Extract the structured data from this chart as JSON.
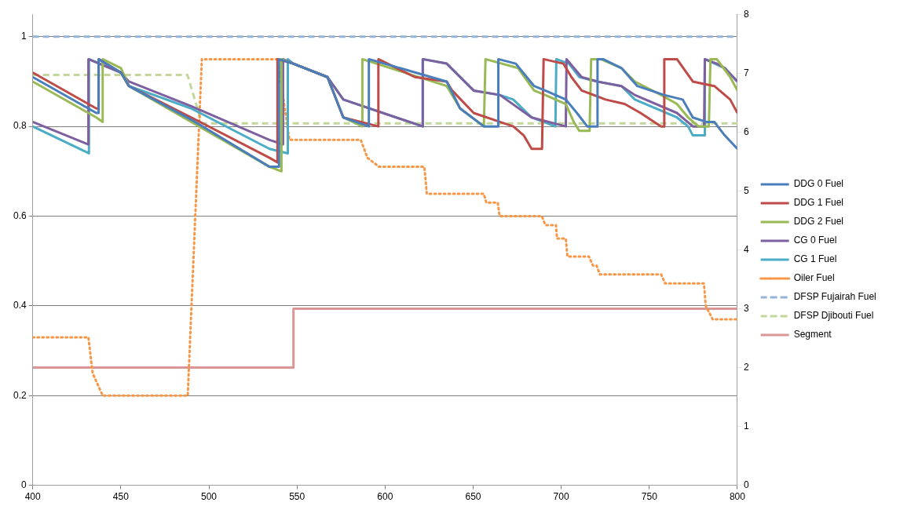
{
  "chart_data": {
    "type": "line",
    "xlim": [
      400,
      800
    ],
    "xticks": [
      400,
      450,
      500,
      550,
      600,
      650,
      700,
      750,
      800
    ],
    "ylim": [
      0,
      1.05
    ],
    "yticks": [
      0,
      0.2,
      0.4,
      0.6,
      0.8,
      1
    ],
    "y2lim": [
      0,
      8
    ],
    "y2ticks": [
      0,
      1,
      2,
      3,
      4,
      5,
      6,
      7,
      8
    ],
    "grid": "y",
    "legend": "right",
    "marker": "none",
    "series": [
      {
        "name": "DDG 0 Fuel",
        "color": "#4a7ebb",
        "line_style": "solid",
        "x": [
          400,
          436.1,
          437.4,
          437.4,
          450.1,
          454.6,
          490,
          534.4,
          539.8,
          539.8,
          547.9,
          567.3,
          576.3,
          590.8,
          590.8,
          635,
          642.6,
          656.1,
          664.3,
          664.3,
          674.2,
          684.6,
          690.9,
          702.6,
          708.9,
          714.8,
          720.6,
          720.6,
          723.8,
          734.2,
          743.2,
          758.5,
          768.9,
          774.7,
          782.4,
          786.9,
          792.8,
          800
        ],
        "values": [
          0.91,
          0.83,
          0.83,
          0.95,
          0.92,
          0.89,
          0.815,
          0.71,
          0.71,
          0.95,
          0.94,
          0.91,
          0.82,
          0.8,
          0.95,
          0.9,
          0.84,
          0.8,
          0.8,
          0.95,
          0.94,
          0.89,
          0.88,
          0.86,
          0.83,
          0.8,
          0.8,
          0.95,
          0.95,
          0.93,
          0.89,
          0.87,
          0.86,
          0.82,
          0.81,
          0.81,
          0.78,
          0.75
        ]
      },
      {
        "name": "DDG 1 Fuel",
        "color": "#be4b48",
        "line_style": "solid",
        "x": [
          400,
          436.1,
          437.4,
          437.4,
          450.1,
          454.6,
          490,
          534.4,
          538.9,
          538.9,
          547.9,
          567.3,
          576.3,
          596.2,
          596.2,
          616.9,
          635,
          638.1,
          650.3,
          665.2,
          672.8,
          678.7,
          683.2,
          689.1,
          690,
          701.2,
          705.8,
          711.6,
          725.1,
          736,
          745,
          756.7,
          758.5,
          758.5,
          765.7,
          774.7,
          786.9,
          795.9,
          800
        ],
        "values": [
          0.92,
          0.84,
          0.84,
          0.95,
          0.92,
          0.89,
          0.82,
          0.73,
          0.72,
          0.95,
          0.94,
          0.91,
          0.82,
          0.8,
          0.95,
          0.91,
          0.9,
          0.88,
          0.83,
          0.81,
          0.8,
          0.78,
          0.75,
          0.75,
          0.95,
          0.94,
          0.91,
          0.88,
          0.86,
          0.85,
          0.83,
          0.8,
          0.8,
          0.95,
          0.95,
          0.9,
          0.89,
          0.86,
          0.83
        ]
      },
      {
        "name": "DDG 2 Fuel",
        "color": "#98b954",
        "line_style": "solid",
        "x": [
          400,
          436.1,
          439.7,
          439.7,
          450.1,
          454.6,
          490,
          534.4,
          541.2,
          541.2,
          547.9,
          567.3,
          576.3,
          587.1,
          587.1,
          635,
          642.6,
          656.1,
          657,
          675.5,
          684.6,
          690.9,
          702.6,
          707.1,
          710.3,
          716.1,
          717,
          722.4,
          734.2,
          741.8,
          756.7,
          765.7,
          772,
          777.9,
          783.8,
          784.7,
          788.3,
          795.9,
          800
        ],
        "values": [
          0.9,
          0.82,
          0.81,
          0.95,
          0.93,
          0.89,
          0.81,
          0.71,
          0.7,
          0.95,
          0.94,
          0.91,
          0.82,
          0.8,
          0.95,
          0.89,
          0.84,
          0.8,
          0.95,
          0.93,
          0.88,
          0.87,
          0.85,
          0.81,
          0.79,
          0.79,
          0.95,
          0.95,
          0.93,
          0.9,
          0.87,
          0.85,
          0.82,
          0.8,
          0.8,
          0.95,
          0.95,
          0.91,
          0.88
        ]
      },
      {
        "name": "CG 0 Fuel",
        "color": "#7d60a0",
        "line_style": "solid",
        "x": [
          400,
          431.6,
          431.6,
          450.1,
          454.6,
          490,
          534.4,
          542.1,
          542.1,
          547.9,
          567.3,
          576.3,
          621.4,
          621.4,
          635,
          650.3,
          665.2,
          683.2,
          702.6,
          703,
          711.6,
          720.6,
          734.2,
          741.8,
          765.7,
          774.7,
          781.1,
          781.5,
          788.3,
          792.8,
          800
        ],
        "values": [
          0.81,
          0.76,
          0.95,
          0.92,
          0.9,
          0.845,
          0.77,
          0.76,
          0.95,
          0.94,
          0.91,
          0.86,
          0.8,
          0.95,
          0.94,
          0.88,
          0.87,
          0.82,
          0.8,
          0.95,
          0.91,
          0.9,
          0.89,
          0.87,
          0.83,
          0.8,
          0.8,
          0.95,
          0.94,
          0.93,
          0.9
        ]
      },
      {
        "name": "CG 1 Fuel",
        "color": "#4bacc6",
        "line_style": "solid",
        "x": [
          400,
          431.9,
          431.9,
          450.1,
          454.6,
          490,
          534.4,
          544.8,
          544.8,
          547.9,
          567.3,
          576.3,
          621.4,
          621.4,
          635,
          650.3,
          665.2,
          672.8,
          683.2,
          696.7,
          697.2,
          704.4,
          710.3,
          720.6,
          734.2,
          741.8,
          765.7,
          772,
          774.7,
          781.5,
          781.5,
          792.8,
          800
        ],
        "values": [
          0.8,
          0.74,
          0.95,
          0.92,
          0.89,
          0.84,
          0.75,
          0.74,
          0.95,
          0.94,
          0.91,
          0.86,
          0.8,
          0.95,
          0.94,
          0.88,
          0.87,
          0.86,
          0.82,
          0.8,
          0.95,
          0.94,
          0.91,
          0.9,
          0.89,
          0.86,
          0.82,
          0.8,
          0.78,
          0.78,
          0.95,
          0.93,
          0.9
        ]
      },
      {
        "name": "Oiler Fuel",
        "color": "#f79646",
        "line_style": "dotted",
        "x": [
          400,
          431.6,
          434,
          439.7,
          488,
          496,
          539,
          545.7,
          586.2,
          590,
          596.6,
          622.3,
          623.7,
          656,
          657.5,
          664,
          665,
          689,
          691,
          697,
          697.6,
          702.6,
          703.5,
          715.7,
          718,
          720,
          722,
          756.7,
          759,
          781,
          782,
          786,
          800
        ],
        "values": [
          0.33,
          0.33,
          0.25,
          0.2,
          0.2,
          0.95,
          0.95,
          0.77,
          0.77,
          0.73,
          0.71,
          0.71,
          0.65,
          0.65,
          0.63,
          0.63,
          0.6,
          0.6,
          0.58,
          0.58,
          0.55,
          0.55,
          0.51,
          0.51,
          0.49,
          0.49,
          0.47,
          0.47,
          0.45,
          0.45,
          0.4,
          0.37,
          0.37
        ]
      },
      {
        "name": "DFSP Fujairah Fuel",
        "color": "#95b3d7",
        "line_style": "dashed",
        "x": [
          400,
          800
        ],
        "values": [
          1,
          1
        ]
      },
      {
        "name": "DFSP Djibouti Fuel",
        "color": "#c3d69b",
        "line_style": "dashed",
        "x": [
          400,
          487.8,
          496,
          800
        ],
        "values": [
          0.915,
          0.915,
          0.807,
          0.807
        ]
      },
      {
        "name": "Segment",
        "color": "#d99694",
        "line_style": "solid",
        "axis": "y2",
        "x": [
          400,
          548,
          548,
          800
        ],
        "values": [
          2,
          2,
          3,
          3
        ]
      }
    ]
  }
}
